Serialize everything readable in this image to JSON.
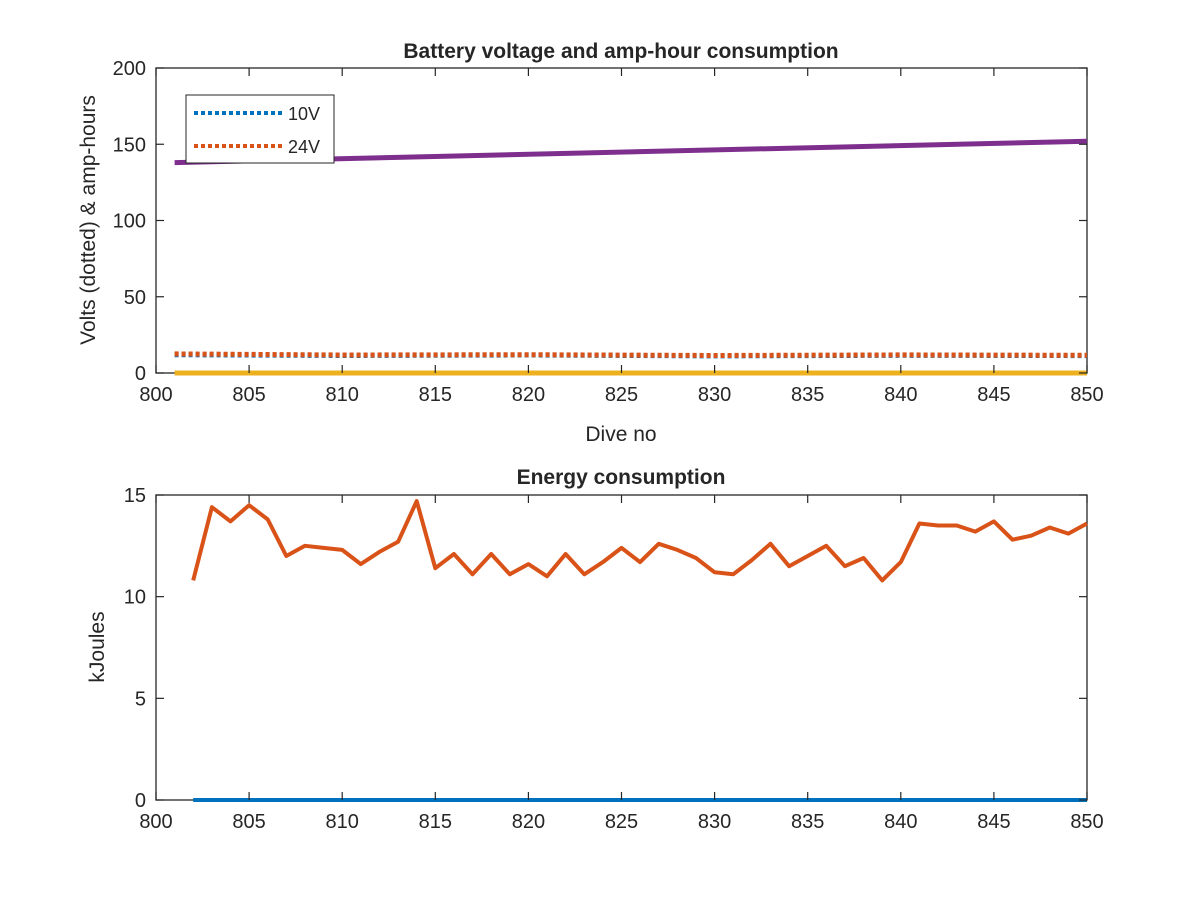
{
  "chart_data": [
    {
      "type": "line",
      "title": "Battery voltage and amp-hour consumption",
      "xlabel": "Dive no",
      "ylabel": "Volts (dotted) & amp-hours",
      "xlim": [
        800,
        850
      ],
      "ylim": [
        0,
        200
      ],
      "xticks": [
        "800",
        "805",
        "810",
        "815",
        "820",
        "825",
        "830",
        "835",
        "840",
        "845",
        "850"
      ],
      "yticks": [
        "0",
        "50",
        "100",
        "150",
        "200"
      ],
      "legend": {
        "placement": "top-left",
        "entries": [
          "10V",
          "24V"
        ]
      },
      "series": [
        {
          "name": "10V",
          "style": "dotted",
          "color": "#0072BD",
          "x": [
            801,
            810,
            820,
            830,
            840,
            850
          ],
          "y": [
            12,
            11.5,
            11.8,
            11.2,
            11.6,
            11.4
          ]
        },
        {
          "name": "24V",
          "style": "dotted",
          "color": "#D95319",
          "x": [
            801,
            810,
            820,
            830,
            840,
            850
          ],
          "y": [
            12.5,
            11.8,
            12,
            11.5,
            11.9,
            11.6
          ]
        },
        {
          "style": "solid",
          "color": "#EDB120",
          "x": [
            801,
            850
          ],
          "y": [
            0,
            0
          ]
        },
        {
          "style": "solid",
          "color": "#7E2F8E",
          "x": [
            801,
            850
          ],
          "y": [
            138,
            152
          ]
        }
      ]
    },
    {
      "type": "line",
      "title": "Energy consumption",
      "xlabel": "",
      "ylabel": "kJoules",
      "xlim": [
        800,
        850
      ],
      "ylim": [
        0,
        15
      ],
      "xticks": [
        "800",
        "805",
        "810",
        "815",
        "820",
        "825",
        "830",
        "835",
        "840",
        "845",
        "850"
      ],
      "yticks": [
        "0",
        "5",
        "10",
        "15"
      ],
      "series": [
        {
          "style": "solid",
          "color": "#0072BD",
          "x": [
            802,
            850
          ],
          "y": [
            0,
            0
          ]
        },
        {
          "style": "solid",
          "color": "#D95319",
          "x": [
            802,
            803,
            804,
            805,
            806,
            807,
            808,
            809,
            810,
            811,
            812,
            813,
            814,
            815,
            816,
            817,
            818,
            819,
            820,
            821,
            822,
            823,
            824,
            825,
            826,
            827,
            828,
            829,
            830,
            831,
            832,
            833,
            834,
            835,
            836,
            837,
            838,
            839,
            840,
            841,
            842,
            843,
            844,
            845,
            846,
            847,
            848,
            849,
            850
          ],
          "y": [
            10.8,
            14.4,
            13.7,
            14.5,
            13.8,
            12.0,
            12.5,
            12.4,
            12.3,
            11.6,
            12.2,
            12.7,
            14.7,
            11.4,
            12.1,
            11.1,
            12.1,
            11.1,
            11.6,
            11.0,
            12.1,
            11.1,
            11.7,
            12.4,
            11.7,
            12.6,
            12.3,
            11.9,
            11.2,
            11.1,
            11.8,
            12.6,
            11.5,
            12.0,
            12.5,
            11.5,
            11.9,
            10.8,
            11.7,
            13.6,
            13.5,
            13.5,
            13.2,
            13.7,
            12.8,
            13.0,
            13.4,
            13.1,
            13.6
          ]
        }
      ]
    }
  ]
}
